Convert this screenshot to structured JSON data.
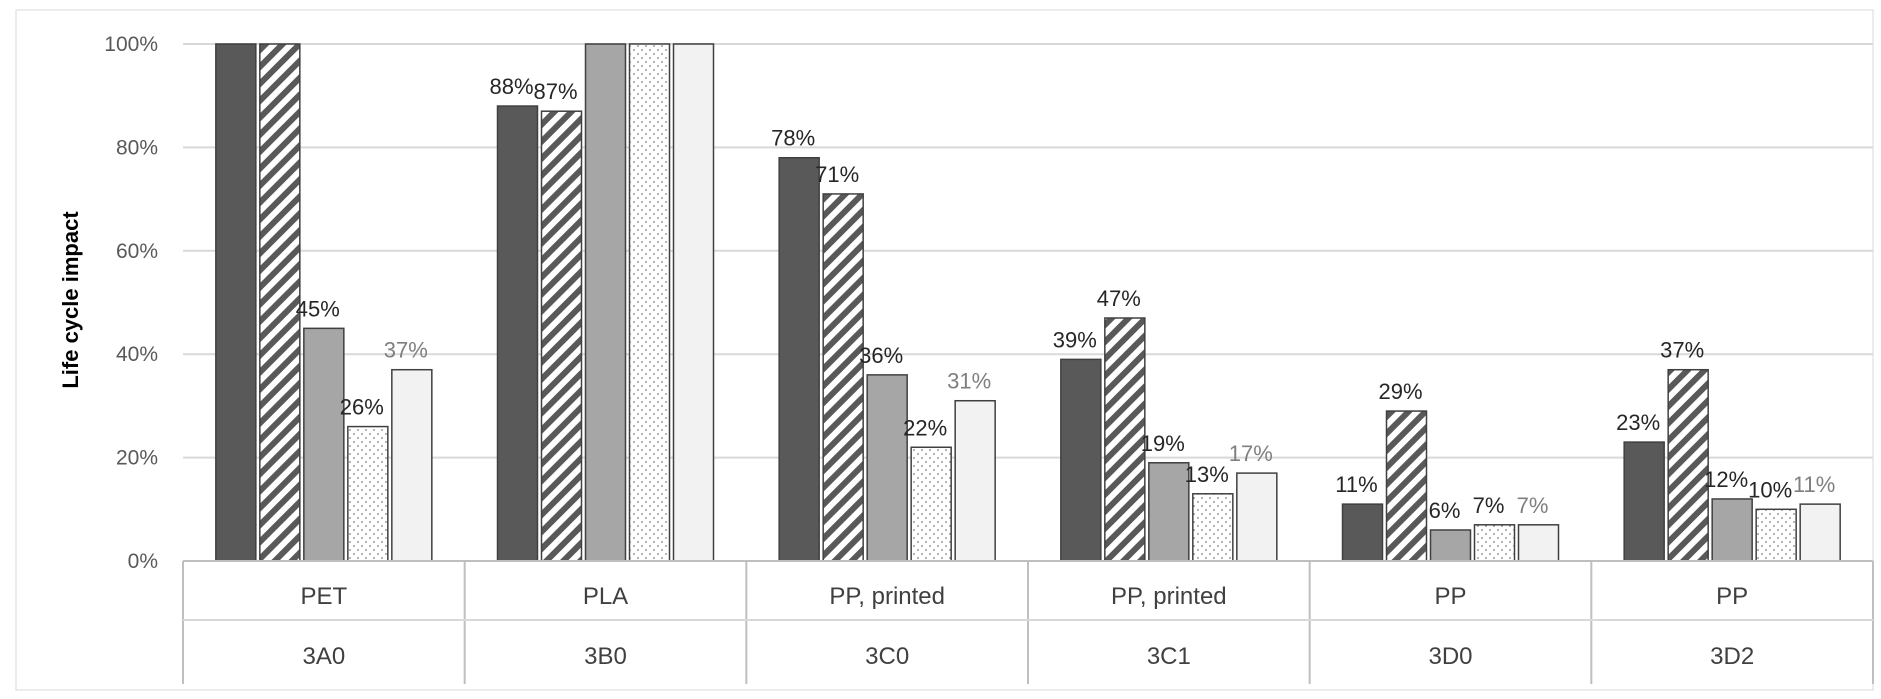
{
  "chart_data": {
    "type": "bar",
    "title": "",
    "xlabel": "",
    "ylabel": "Life cycle impact",
    "ylim": [
      0,
      1
    ],
    "yticks": [
      "0%",
      "20%",
      "40%",
      "60%",
      "80%",
      "100%"
    ],
    "grid": true,
    "legend": "none",
    "categories": [
      {
        "top": "PET",
        "bottom": "3A0"
      },
      {
        "top": "PLA",
        "bottom": "3B0"
      },
      {
        "top": "PP, printed",
        "bottom": "3C0"
      },
      {
        "top": "PP, printed",
        "bottom": "3C1"
      },
      {
        "top": "PP",
        "bottom": "3D0"
      },
      {
        "top": "PP",
        "bottom": "3D2"
      }
    ],
    "series": [
      {
        "style": "solid-dark",
        "fill": "#595959",
        "values": [
          1.0,
          0.88,
          0.78,
          0.39,
          0.11,
          0.23
        ],
        "labels": [
          "",
          "88%",
          "78%",
          "39%",
          "11%",
          "23%"
        ]
      },
      {
        "style": "diagonal-hatch",
        "fill": "#595959",
        "values": [
          1.0,
          0.87,
          0.71,
          0.47,
          0.29,
          0.37
        ],
        "labels": [
          "",
          "87%",
          "71%",
          "47%",
          "29%",
          "37%"
        ]
      },
      {
        "style": "solid-mid",
        "fill": "#a6a6a6",
        "values": [
          0.45,
          1.0,
          0.36,
          0.19,
          0.06,
          0.12
        ],
        "labels": [
          "45%",
          "",
          "36%",
          "19%",
          "6%",
          "12%"
        ]
      },
      {
        "style": "dotted",
        "fill": "#ffffff",
        "values": [
          0.26,
          1.0,
          0.22,
          0.13,
          0.07,
          0.1
        ],
        "labels": [
          "26%",
          "",
          "22%",
          "13%",
          "7%",
          "10%"
        ]
      },
      {
        "style": "solid-light",
        "fill": "#f2f2f2",
        "values": [
          0.37,
          1.0,
          0.31,
          0.17,
          0.07,
          0.11
        ],
        "labels": [
          "37%",
          "",
          "31%",
          "17%",
          "7%",
          "11%"
        ]
      }
    ]
  }
}
